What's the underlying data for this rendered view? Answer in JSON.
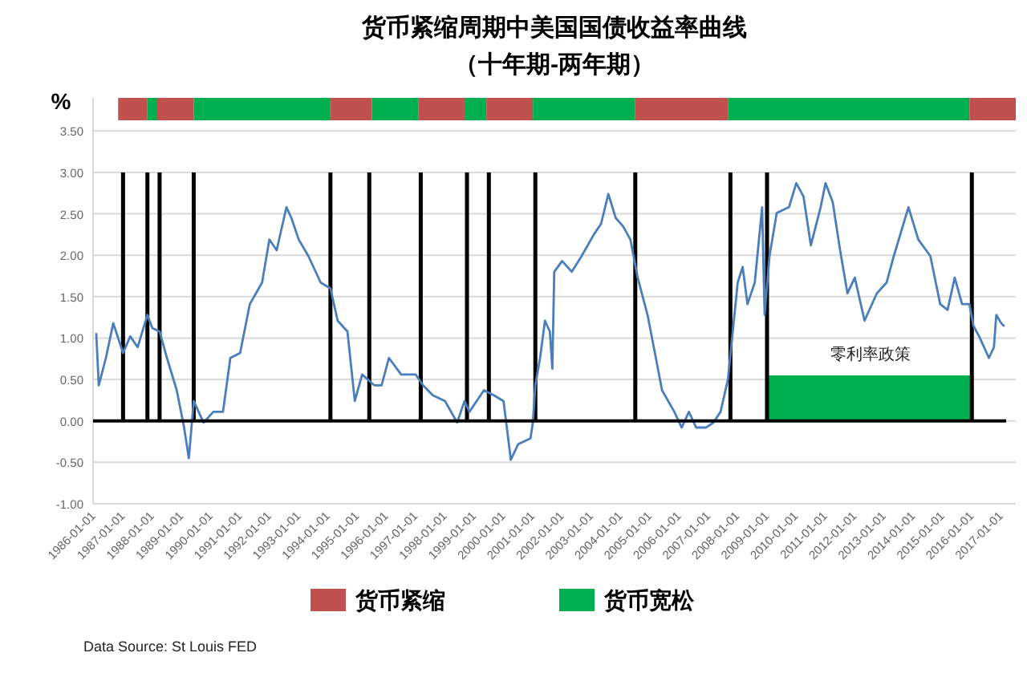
{
  "chart_data": {
    "type": "line",
    "title": "货币紧缩周期中美国国债收益率曲线",
    "subtitle": "（十年期-两年期）",
    "ylabel": "%",
    "annotations": [
      "Data Source: St Louis FED"
    ],
    "xlim": [
      "1985-11-22",
      "2017-06-01"
    ],
    "xticks": [
      "1986-01-01",
      "1987-01-01",
      "1988-01-01",
      "1989-01-01",
      "1990-01-01",
      "1991-01-01",
      "1992-01-01",
      "1993-01-01",
      "1994-01-01",
      "1995-01-01",
      "1996-01-01",
      "1997-01-01",
      "1998-01-01",
      "1999-01-01",
      "2000-01-01",
      "2001-01-01",
      "2002-01-01",
      "2003-01-01",
      "2004-01-01",
      "2005-01-01",
      "2006-01-01",
      "2007-01-01",
      "2008-01-01",
      "2009-01-01",
      "2010-01-01",
      "2011-01-01",
      "2012-01-01",
      "2013-01-01",
      "2014-01-01",
      "2015-01-01",
      "2016-01-01",
      "2017-01-01"
    ],
    "ylim": [
      -1,
      3.9
    ],
    "yticks": [
      {
        "value": -1,
        "label": "-1.00"
      },
      {
        "value": -0.5,
        "label": "-0.50"
      },
      {
        "value": 0,
        "label": "0.00"
      },
      {
        "value": 0.5,
        "label": "0.50"
      },
      {
        "value": 1,
        "label": "1.00"
      },
      {
        "value": 1.5,
        "label": "1.50"
      },
      {
        "value": 2,
        "label": "2.00"
      },
      {
        "value": 2.5,
        "label": "2.50"
      },
      {
        "value": 3,
        "label": "3.00"
      },
      {
        "value": 3.5,
        "label": "3.50"
      }
    ],
    "grid": "y",
    "legend": "bottom",
    "series": [
      {
        "color": "#4a7ebb",
        "x": [
          "1986-01-01",
          "1986-02-01",
          "1986-05-01",
          "1986-08-01",
          "1986-12-01",
          "1987-03-01",
          "1987-06-01",
          "1987-10-01",
          "1987-12-01",
          "1988-03-01",
          "1988-06-01",
          "1988-10-01",
          "1989-01-01",
          "1989-03-01",
          "1989-05-01",
          "1989-09-01",
          "1990-01-01",
          "1990-05-01",
          "1990-08-01",
          "1990-12-01",
          "1991-04-01",
          "1991-09-01",
          "1991-12-01",
          "1992-03-01",
          "1992-07-01",
          "1992-09-01",
          "1992-12-01",
          "1993-04-01",
          "1993-09-01",
          "1994-01-01",
          "1994-04-01",
          "1994-08-01",
          "1994-11-01",
          "1995-02-01",
          "1995-07-01",
          "1995-10-01",
          "1996-01-01",
          "1996-06-01",
          "1996-12-01",
          "1997-03-01",
          "1997-07-01",
          "1997-12-01",
          "1998-05-01",
          "1998-08-01",
          "1998-10-01",
          "1999-04-01",
          "1999-08-01",
          "1999-12-01",
          "2000-03-01",
          "2000-06-01",
          "2000-11-01",
          "2000-12-01",
          "2001-01-01",
          "2001-03-01",
          "2001-05-01",
          "2001-07-01",
          "2001-08-01",
          "2001-08-25",
          "2001-12-01",
          "2002-04-01",
          "2002-08-01",
          "2003-01-01",
          "2003-04-01",
          "2003-07-01",
          "2003-10-01",
          "2004-01-01",
          "2004-04-01",
          "2004-07-01",
          "2004-11-01",
          "2005-02-01",
          "2005-05-01",
          "2005-10-01",
          "2006-01-01",
          "2006-04-01",
          "2006-07-01",
          "2006-11-01",
          "2007-02-01",
          "2007-05-01",
          "2007-08-01",
          "2007-12-01",
          "2008-02-01",
          "2008-04-01",
          "2008-07-01",
          "2008-10-01",
          "2008-11-01",
          "2009-01-01",
          "2009-04-01",
          "2009-09-01",
          "2009-12-01",
          "2010-03-01",
          "2010-06-01",
          "2010-10-01",
          "2010-12-01",
          "2011-03-01",
          "2011-06-01",
          "2011-09-01",
          "2011-12-01",
          "2012-04-01",
          "2012-09-01",
          "2013-01-01",
          "2013-04-01",
          "2013-10-01",
          "2014-02-01",
          "2014-07-01",
          "2014-11-01",
          "2015-02-01",
          "2015-05-01",
          "2015-08-01",
          "2015-11-01",
          "2015-12-20",
          "2016-03-01",
          "2016-07-01",
          "2016-09-01",
          "2016-10-01",
          "2016-12-01",
          "2017-01-01"
        ],
        "values": [
          1.05,
          0.43,
          0.76,
          1.18,
          0.82,
          1.02,
          0.89,
          1.28,
          1.12,
          1.08,
          0.76,
          0.37,
          -0.08,
          -0.45,
          0.24,
          -0.02,
          0.11,
          0.11,
          0.76,
          0.82,
          1.41,
          1.67,
          2.19,
          2.06,
          2.58,
          2.45,
          2.19,
          1.99,
          1.67,
          1.6,
          1.21,
          1.08,
          0.24,
          0.56,
          0.43,
          0.43,
          0.76,
          0.56,
          0.56,
          0.43,
          0.31,
          0.24,
          -0.02,
          0.24,
          0.11,
          0.37,
          0.31,
          0.24,
          -0.47,
          -0.28,
          -0.21,
          -0.02,
          0.43,
          0.76,
          1.21,
          1.08,
          0.63,
          1.8,
          1.93,
          1.8,
          1.99,
          2.25,
          2.38,
          2.74,
          2.45,
          2.35,
          2.19,
          1.73,
          1.28,
          0.82,
          0.37,
          0.11,
          -0.08,
          0.11,
          -0.08,
          -0.08,
          -0.02,
          0.11,
          0.5,
          1.67,
          1.86,
          1.41,
          1.67,
          2.58,
          1.28,
          1.99,
          2.51,
          2.58,
          2.87,
          2.71,
          2.12,
          2.58,
          2.87,
          2.64,
          2.06,
          1.54,
          1.73,
          1.21,
          1.54,
          1.67,
          1.99,
          2.58,
          2.19,
          1.99,
          1.41,
          1.34,
          1.73,
          1.41,
          1.41,
          1.15,
          1.02,
          0.76,
          0.89,
          1.28,
          1.18,
          1.15
        ]
      },
      {
        "type": "area",
        "name": "零利率政策",
        "color": "#00b050",
        "x": [
          "2008-12-16",
          "2015-12-16"
        ],
        "values": [
          0.55,
          0.55
        ]
      }
    ],
    "ref_lines": [
      {
        "axis": "x",
        "value": "1986-12-01",
        "color": "#000000"
      },
      {
        "axis": "x",
        "value": "1987-10-01",
        "color": "#000000"
      },
      {
        "axis": "x",
        "value": "1988-03-01",
        "color": "#000000"
      },
      {
        "axis": "x",
        "value": "1989-05-01",
        "color": "#000000"
      },
      {
        "axis": "x",
        "value": "1994-01-01",
        "color": "#000000"
      },
      {
        "axis": "x",
        "value": "1995-05-01",
        "color": "#000000"
      },
      {
        "axis": "x",
        "value": "1997-02-01",
        "color": "#000000"
      },
      {
        "axis": "x",
        "value": "1998-09-01",
        "color": "#000000"
      },
      {
        "axis": "x",
        "value": "1999-06-01",
        "color": "#000000"
      },
      {
        "axis": "x",
        "value": "2001-01-01",
        "color": "#000000"
      },
      {
        "axis": "x",
        "value": "2004-06-01",
        "color": "#000000"
      },
      {
        "axis": "x",
        "value": "2007-09-01",
        "color": "#000000"
      },
      {
        "axis": "x",
        "value": "2008-12-01",
        "color": "#000000"
      },
      {
        "axis": "x",
        "value": "2015-12-01",
        "color": "#000000"
      }
    ],
    "bands": [
      {
        "axis": "x",
        "from": "1986-10-01",
        "to": "1987-10-01",
        "color": "#c0504d",
        "label": "货币紧缩"
      },
      {
        "axis": "x",
        "from": "1987-10-01",
        "to": "1988-02-01",
        "color": "#00b050",
        "label": "货币宽松"
      },
      {
        "axis": "x",
        "from": "1988-02-01",
        "to": "1989-05-01",
        "color": "#c0504d"
      },
      {
        "axis": "x",
        "from": "1989-05-01",
        "to": "1994-01-01",
        "color": "#00b050"
      },
      {
        "axis": "x",
        "from": "1994-01-01",
        "to": "1995-06-01",
        "color": "#c0504d"
      },
      {
        "axis": "x",
        "from": "1995-06-01",
        "to": "1997-01-01",
        "color": "#00b050"
      },
      {
        "axis": "x",
        "from": "1997-01-01",
        "to": "1998-08-01",
        "color": "#c0504d"
      },
      {
        "axis": "x",
        "from": "1998-08-01",
        "to": "1999-05-01",
        "color": "#00b050"
      },
      {
        "axis": "x",
        "from": "1999-05-01",
        "to": "2000-12-01",
        "color": "#c0504d"
      },
      {
        "axis": "x",
        "from": "2000-12-01",
        "to": "2004-06-01",
        "color": "#00b050"
      },
      {
        "axis": "x",
        "from": "2004-06-01",
        "to": "2007-08-01",
        "color": "#c0504d"
      },
      {
        "axis": "x",
        "from": "2007-08-01",
        "to": "2015-11-01",
        "color": "#00b050"
      },
      {
        "axis": "x",
        "from": "2015-11-01",
        "to": "2017-06-01",
        "color": "#c0504d"
      }
    ]
  }
}
